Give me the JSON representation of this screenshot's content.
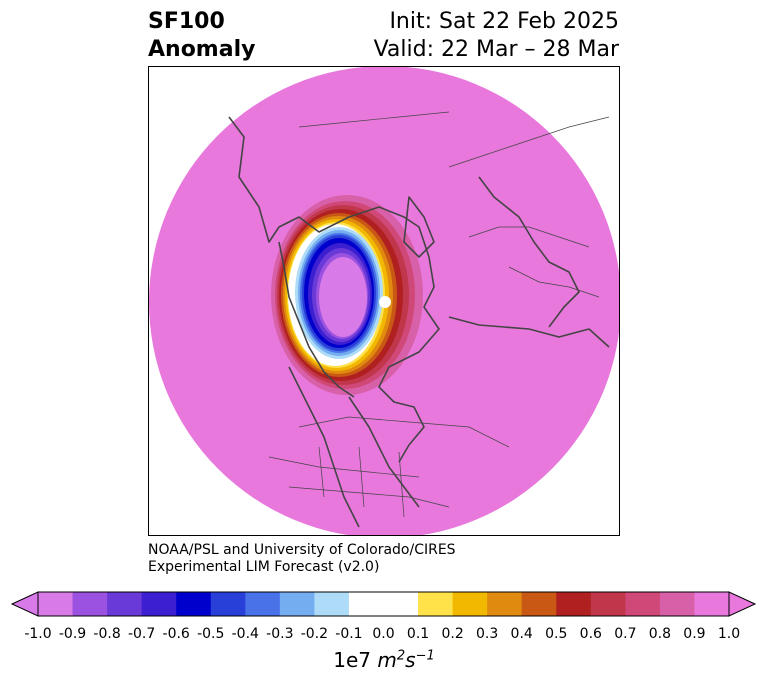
{
  "header": {
    "variable": "SF100",
    "type": "Anomaly",
    "init": "Init: Sat 22 Feb 2025",
    "valid": "Valid: 22 Mar – 28 Mar"
  },
  "credit": {
    "line1": "NOAA/PSL and University of Colorado/CIRES",
    "line2": "Experimental LIM Forecast (v2.0)"
  },
  "colorbar": {
    "ticks": [
      "-1.0",
      "-0.9",
      "-0.8",
      "-0.7",
      "-0.6",
      "-0.5",
      "-0.4",
      "-0.3",
      "-0.2",
      "-0.1",
      "0.0",
      "0.1",
      "0.2",
      "0.3",
      "0.4",
      "0.5",
      "0.6",
      "0.7",
      "0.8",
      "0.9",
      "1.0"
    ],
    "colors": [
      "#d87be8",
      "#9b52e0",
      "#6a3ad9",
      "#3c1fd0",
      "#0000cc",
      "#2840d8",
      "#4a72e8",
      "#74aef0",
      "#aedcf8",
      "#ffffff",
      "#ffffff",
      "#ffe24a",
      "#f2b800",
      "#e08a10",
      "#c85814",
      "#b02020",
      "#c0364a",
      "#d04878",
      "#d860a8",
      "#e878dc"
    ],
    "extend_min_color": "#d87be8",
    "extend_max_color": "#e878dc",
    "units_prefix": "1e7 ",
    "units_main": "m",
    "units_exp1": "2",
    "units_mid": "s",
    "units_exp2": "−1"
  },
  "map": {
    "projection": "north-polar-stereographic",
    "background_color": "#e878dc",
    "anomaly_center_color": "#d87be8",
    "features": [
      "coastlines",
      "country-borders",
      "state-province-borders"
    ]
  }
}
